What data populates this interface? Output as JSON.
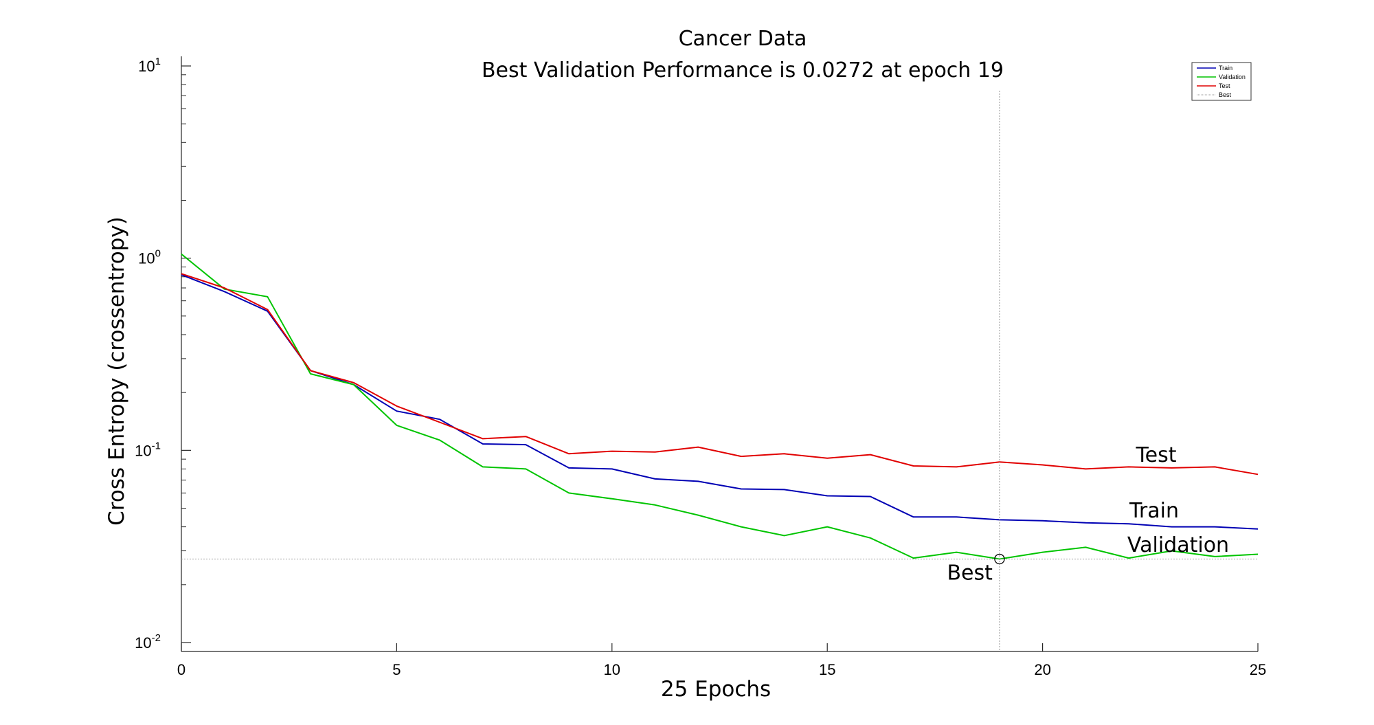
{
  "chart_data": {
    "type": "line",
    "title": "Cancer Data",
    "subtitle": "Best Validation Performance is 0.0272 at epoch 19",
    "xlabel": "25 Epochs",
    "ylabel": "Cross Entropy (crossentropy)",
    "xlim": [
      0,
      25
    ],
    "ylim": [
      0.01,
      10
    ],
    "yscale": "log",
    "xticks": [
      0,
      5,
      10,
      15,
      20,
      25
    ],
    "yticks": [
      {
        "value": 0.01,
        "base": "10",
        "exp": "-2"
      },
      {
        "value": 0.1,
        "base": "10",
        "exp": "-1"
      },
      {
        "value": 1,
        "base": "10",
        "exp": "0"
      },
      {
        "value": 10,
        "base": "10",
        "exp": "1"
      }
    ],
    "grid": false,
    "legend_position": "top-right",
    "x": [
      0,
      1,
      2,
      3,
      4,
      5,
      6,
      7,
      8,
      9,
      10,
      11,
      12,
      13,
      14,
      15,
      16,
      17,
      18,
      19,
      20,
      21,
      22,
      23,
      24,
      25
    ],
    "series": [
      {
        "name": "Train",
        "color": "#0000b4",
        "values": [
          0.82,
          0.67,
          0.53,
          0.26,
          0.22,
          0.16,
          0.145,
          0.108,
          0.107,
          0.081,
          0.08,
          0.071,
          0.069,
          0.063,
          0.0625,
          0.058,
          0.0575,
          0.045,
          0.045,
          0.0435,
          0.043,
          0.042,
          0.0415,
          0.04,
          0.04,
          0.039
        ]
      },
      {
        "name": "Validation",
        "color": "#00c400",
        "values": [
          1.05,
          0.69,
          0.63,
          0.25,
          0.22,
          0.135,
          0.113,
          0.082,
          0.08,
          0.06,
          0.056,
          0.052,
          0.046,
          0.04,
          0.036,
          0.04,
          0.035,
          0.0275,
          0.0295,
          0.0272,
          0.0295,
          0.0313,
          0.0275,
          0.03,
          0.028,
          0.0288
        ]
      },
      {
        "name": "Test",
        "color": "#e10000",
        "values": [
          0.83,
          0.7,
          0.54,
          0.26,
          0.225,
          0.17,
          0.14,
          0.115,
          0.118,
          0.096,
          0.099,
          0.098,
          0.104,
          0.093,
          0.096,
          0.091,
          0.095,
          0.083,
          0.082,
          0.087,
          0.084,
          0.08,
          0.082,
          0.081,
          0.082,
          0.075
        ]
      }
    ],
    "best": {
      "label": "Best",
      "legend_label": "Best",
      "epoch": 19,
      "value": 0.0272
    },
    "series_labels": [
      "Test",
      "Train",
      "Validation"
    ]
  }
}
